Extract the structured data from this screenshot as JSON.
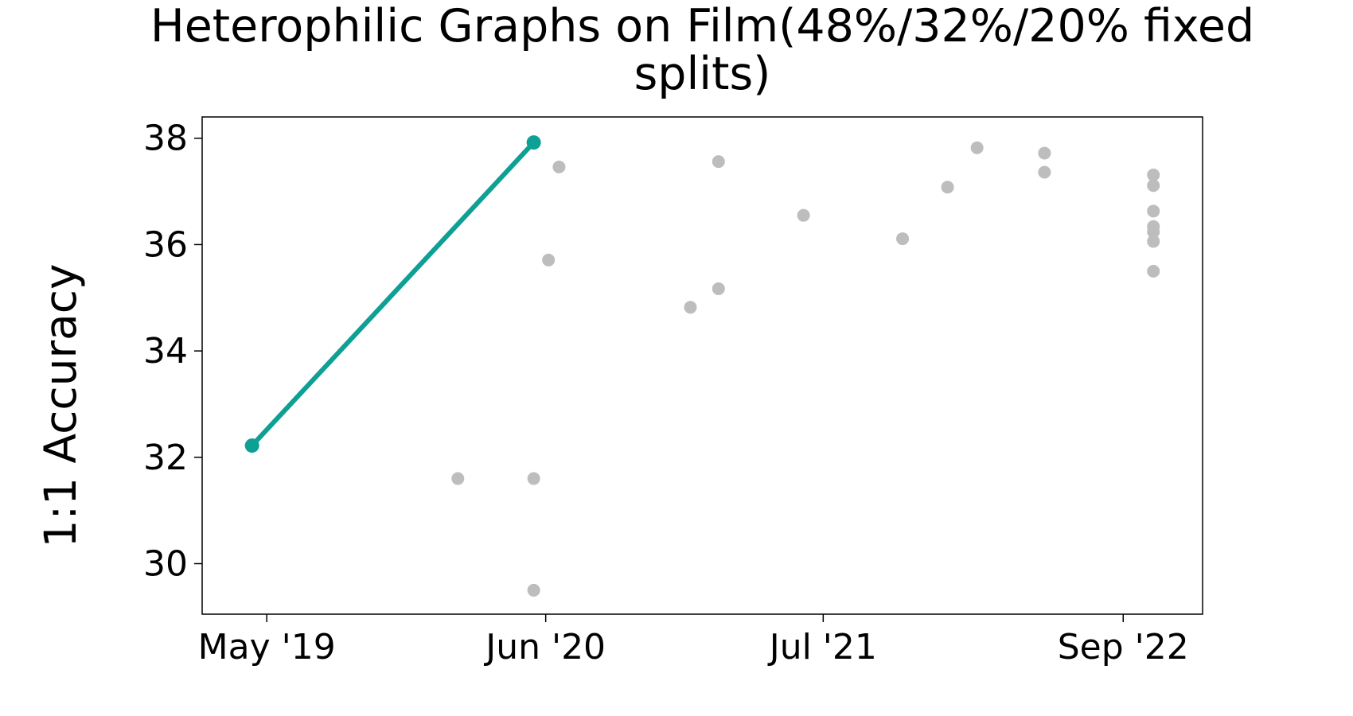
{
  "chart_data": {
    "type": "scatter",
    "title": "Heterophilic Graphs on Film(48%/32%/20% fixed splits)",
    "ylabel": "1:1 Accuracy",
    "xlim": [
      "2019-01-29",
      "2022-12-23"
    ],
    "xticks": [
      {
        "value": "2019-05-01",
        "label": "May '19"
      },
      {
        "value": "2020-06-01",
        "label": "Jun '20"
      },
      {
        "value": "2021-07-01",
        "label": "Jul '21"
      },
      {
        "value": "2022-09-01",
        "label": "Sep '22"
      }
    ],
    "ylim": [
      29.05,
      38.4
    ],
    "yticks": [
      30,
      32,
      34,
      36,
      38
    ],
    "grid": false,
    "series": [
      {
        "color": "#bdbdbd",
        "line": false,
        "x": [
          "2020-01-28",
          "2020-05-15",
          "2020-05-15",
          "2020-06-05",
          "2020-06-20",
          "2020-12-24",
          "2021-02-02",
          "2021-02-02",
          "2021-06-03",
          "2021-10-22",
          "2021-12-25",
          "2022-02-05",
          "2022-05-12",
          "2022-05-12",
          "2022-10-14",
          "2022-10-14",
          "2022-10-14",
          "2022-10-14",
          "2022-10-14",
          "2022-10-14",
          "2022-10-14"
        ],
        "values": [
          31.6,
          31.6,
          29.5,
          35.71,
          37.46,
          34.82,
          35.17,
          37.56,
          36.55,
          36.11,
          37.08,
          37.82,
          37.72,
          37.36,
          37.31,
          37.11,
          36.63,
          36.34,
          36.24,
          36.06,
          35.5
        ]
      },
      {
        "color": "#0e9f95",
        "line": true,
        "x": [
          "2019-04-10",
          "2020-05-15"
        ],
        "values": [
          32.22,
          37.92
        ]
      }
    ]
  }
}
